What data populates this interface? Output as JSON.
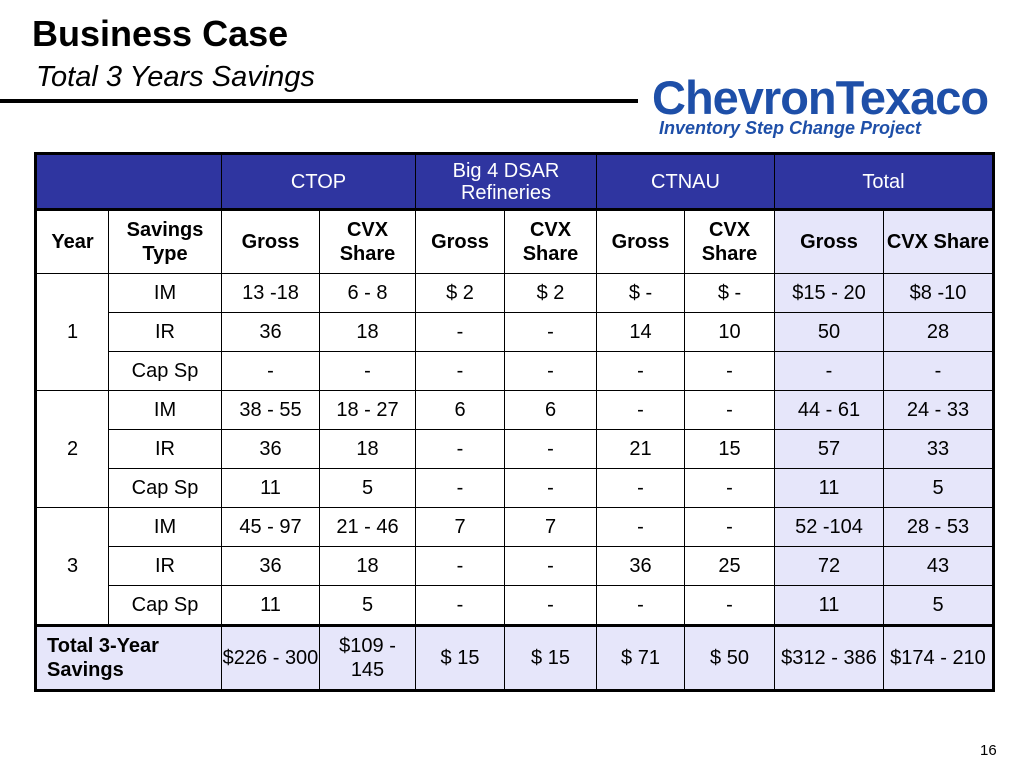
{
  "slide": {
    "title": "Business Case",
    "subtitle": "Total 3 Years Savings",
    "logo_text": "ChevronTexaco",
    "tagline": "Inventory Step Change Project",
    "page_number": "16"
  },
  "colors": {
    "header_band": "#2f35a0",
    "total_columns_bg": "#e6e6fa",
    "brand_blue": "#1e4fa8"
  },
  "table": {
    "group_headers": [
      "CTOP",
      "Big 4 DSAR Refineries",
      "CTNAU",
      "Total"
    ],
    "sub_headers": [
      "Year",
      "Savings Type",
      "Gross",
      "CVX Share",
      "Gross",
      "CVX Share",
      "Gross",
      "CVX Share",
      "Gross",
      "CVX Share"
    ],
    "years": [
      "1",
      "2",
      "3"
    ],
    "rows": [
      [
        "IM",
        "13 -18",
        "6 - 8",
        "$ 2",
        "$ 2",
        "$ -",
        "$  -",
        "$15 - 20",
        "$8 -10"
      ],
      [
        "IR",
        "36",
        "18",
        "-",
        "-",
        "14",
        "10",
        "50",
        "28"
      ],
      [
        "Cap Sp",
        "-",
        "-",
        "-",
        "-",
        "-",
        "-",
        "-",
        "-"
      ],
      [
        "IM",
        "38 - 55",
        "18 - 27",
        "6",
        "6",
        "-",
        "-",
        "44 - 61",
        "24 - 33"
      ],
      [
        "IR",
        "36",
        "18",
        "-",
        "-",
        "21",
        "15",
        "57",
        "33"
      ],
      [
        "Cap Sp",
        "11",
        "5",
        "-",
        "-",
        "-",
        "-",
        "11",
        "5"
      ],
      [
        "IM",
        "45 - 97",
        "21 - 46",
        "7",
        "7",
        "-",
        "-",
        "52 -104",
        "28 - 53"
      ],
      [
        "IR",
        "36",
        "18",
        "-",
        "-",
        "36",
        "25",
        "72",
        "43"
      ],
      [
        "Cap Sp",
        "11",
        "5",
        "-",
        "-",
        "-",
        "-",
        "11",
        "5"
      ]
    ],
    "total_row": {
      "label": "Total 3-Year Savings",
      "values": [
        "$226 - 300",
        "$109 - 145",
        "$ 15",
        "$ 15",
        "$ 71",
        "$ 50",
        "$312 - 386",
        "$174 - 210"
      ]
    }
  }
}
